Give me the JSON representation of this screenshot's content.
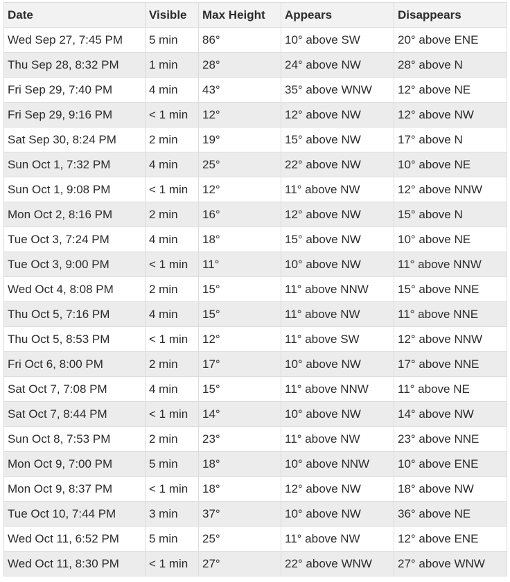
{
  "headers": [
    "Date",
    "Visible",
    "Max Height",
    "Appears",
    "Disappears"
  ],
  "rows": [
    [
      "Wed Sep 27, 7:45 PM",
      "5 min",
      "86°",
      "10° above SW",
      "20° above ENE"
    ],
    [
      "Thu Sep 28, 8:32 PM",
      "1 min",
      "28°",
      "24° above NW",
      "28° above N"
    ],
    [
      "Fri Sep 29, 7:40 PM",
      "4 min",
      "43°",
      "35° above WNW",
      "12° above NE"
    ],
    [
      "Fri Sep 29, 9:16 PM",
      "< 1 min",
      "12°",
      "12° above NW",
      "12° above NW"
    ],
    [
      "Sat Sep 30, 8:24 PM",
      "2 min",
      "19°",
      "15° above NW",
      "17° above N"
    ],
    [
      "Sun Oct 1, 7:32 PM",
      "4 min",
      "25°",
      "22° above NW",
      "10° above NE"
    ],
    [
      "Sun Oct 1, 9:08 PM",
      "< 1 min",
      "12°",
      "11° above NW",
      "12° above NNW"
    ],
    [
      "Mon Oct 2, 8:16 PM",
      "2 min",
      "16°",
      "12° above NW",
      "15° above N"
    ],
    [
      "Tue Oct 3, 7:24 PM",
      "4 min",
      "18°",
      "15° above NW",
      "10° above NE"
    ],
    [
      "Tue Oct 3, 9:00 PM",
      "< 1 min",
      "11°",
      "10° above NW",
      "11° above NNW"
    ],
    [
      "Wed Oct 4, 8:08 PM",
      "2 min",
      "15°",
      "11° above NNW",
      "15° above NNE"
    ],
    [
      "Thu Oct 5, 7:16 PM",
      "4 min",
      "15°",
      "11° above NW",
      "11° above NNE"
    ],
    [
      "Thu Oct 5, 8:53 PM",
      "< 1 min",
      "12°",
      "11° above SW",
      "12° above NNW"
    ],
    [
      "Fri Oct 6, 8:00 PM",
      "2 min",
      "17°",
      "10° above NW",
      "17° above NNE"
    ],
    [
      "Sat Oct 7, 7:08 PM",
      "4 min",
      "15°",
      "11° above NNW",
      "11° above NE"
    ],
    [
      "Sat Oct 7, 8:44 PM",
      "< 1 min",
      "14°",
      "10° above NW",
      "14° above NW"
    ],
    [
      "Sun Oct 8, 7:53 PM",
      "2 min",
      "23°",
      "11° above NW",
      "23° above NNE"
    ],
    [
      "Mon Oct 9, 7:00 PM",
      "5 min",
      "18°",
      "10° above NNW",
      "10° above ENE"
    ],
    [
      "Mon Oct 9, 8:37 PM",
      "< 1 min",
      "18°",
      "12° above NW",
      "18° above NW"
    ],
    [
      "Tue Oct 10, 7:44 PM",
      "3 min",
      "37°",
      "10° above NW",
      "36° above NE"
    ],
    [
      "Wed Oct 11, 6:52 PM",
      "5 min",
      "25°",
      "11° above NW",
      "12° above ENE"
    ],
    [
      "Wed Oct 11, 8:30 PM",
      "< 1 min",
      "27°",
      "22° above WNW",
      "27° above WNW"
    ]
  ]
}
